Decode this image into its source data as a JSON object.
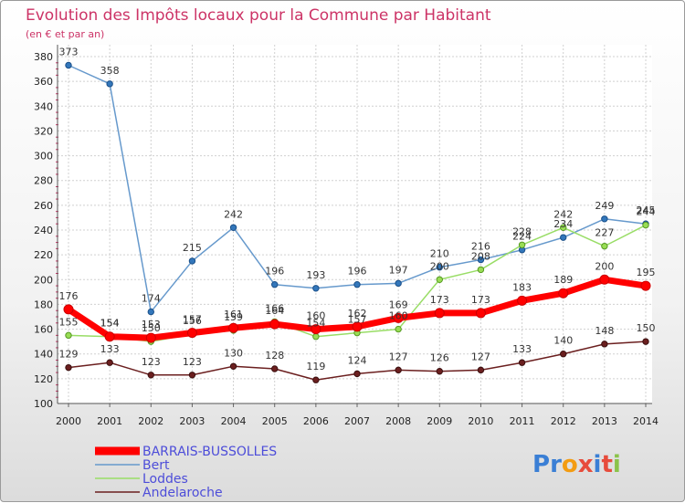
{
  "chart_data": {
    "type": "line",
    "title": "Evolution des Impôts locaux pour la Commune par Habitant",
    "subtitle": "(en € et par an)",
    "xlabel": "",
    "ylabel": "",
    "x": [
      "2000",
      "2001",
      "2002",
      "2003",
      "2004",
      "2005",
      "2006",
      "2007",
      "2008",
      "2009",
      "2010",
      "2011",
      "2012",
      "2013",
      "2014"
    ],
    "ylim": [
      100,
      380
    ],
    "yticks": [
      100,
      120,
      140,
      160,
      180,
      200,
      220,
      240,
      260,
      280,
      300,
      320,
      340,
      360,
      380
    ],
    "grid": true,
    "legend_position": "bottom-left",
    "series": [
      {
        "name": "BARRAIS-BUSSOLLES",
        "color": "#ff0000",
        "values": [
          176,
          154,
          153,
          157,
          161,
          164,
          160,
          162,
          169,
          173,
          173,
          183,
          189,
          200,
          195
        ]
      },
      {
        "name": "Bert",
        "color": "#6699cc",
        "values": [
          373,
          358,
          174,
          215,
          242,
          196,
          193,
          196,
          197,
          210,
          216,
          224,
          234,
          249,
          245
        ]
      },
      {
        "name": "Loddes",
        "color": "#99dd66",
        "values": [
          155,
          154,
          150,
          156,
          159,
          166,
          154,
          157,
          160,
          200,
          208,
          228,
          242,
          227,
          244
        ]
      },
      {
        "name": "Andelaroche",
        "color": "#6b1f1f",
        "values": [
          129,
          133,
          123,
          123,
          130,
          128,
          119,
          124,
          127,
          126,
          127,
          133,
          140,
          148,
          150
        ]
      }
    ]
  },
  "logo": {
    "text": "Proxiti"
  }
}
